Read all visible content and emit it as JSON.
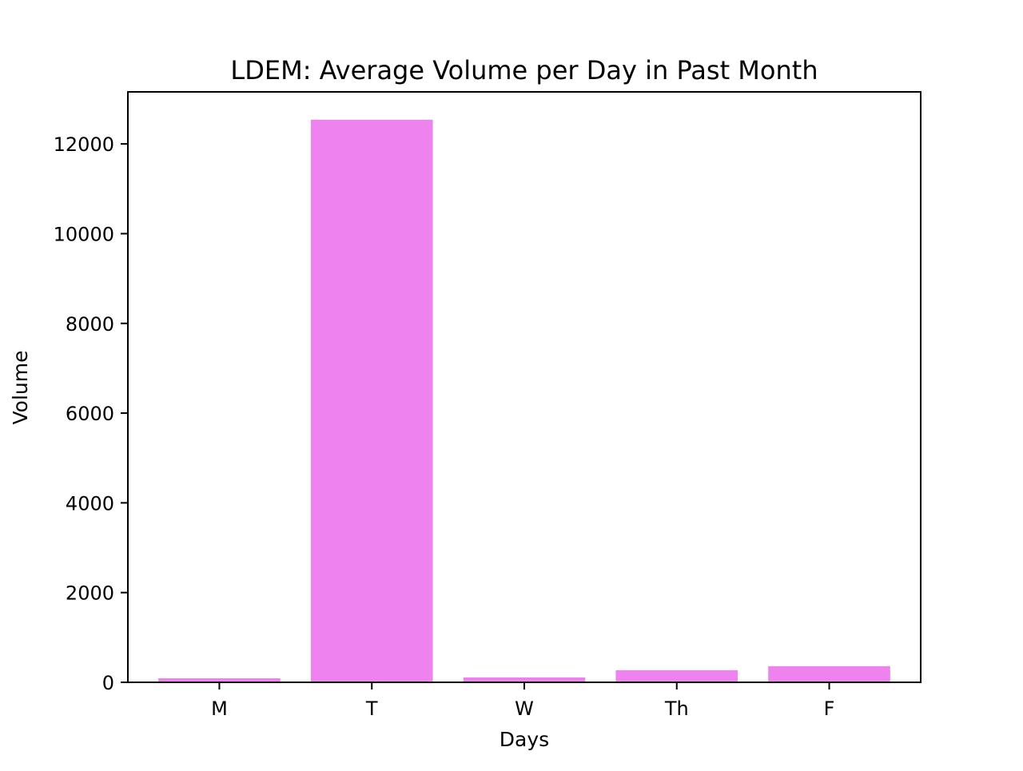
{
  "chart_data": {
    "type": "bar",
    "title": "LDEM: Average Volume per Day in Past Month",
    "xlabel": "Days",
    "ylabel": "Volume",
    "categories": [
      "M",
      "T",
      "W",
      "Th",
      "F"
    ],
    "values": [
      90,
      12540,
      110,
      270,
      360
    ],
    "ylim": [
      0,
      13160
    ],
    "yticks": [
      0,
      2000,
      4000,
      6000,
      8000,
      10000,
      12000
    ],
    "ytick_labels": [
      "0",
      "2000",
      "4000",
      "6000",
      "8000",
      "10000",
      "12000"
    ],
    "grid": false,
    "legend": false,
    "bar_color": "#ee82ee"
  }
}
